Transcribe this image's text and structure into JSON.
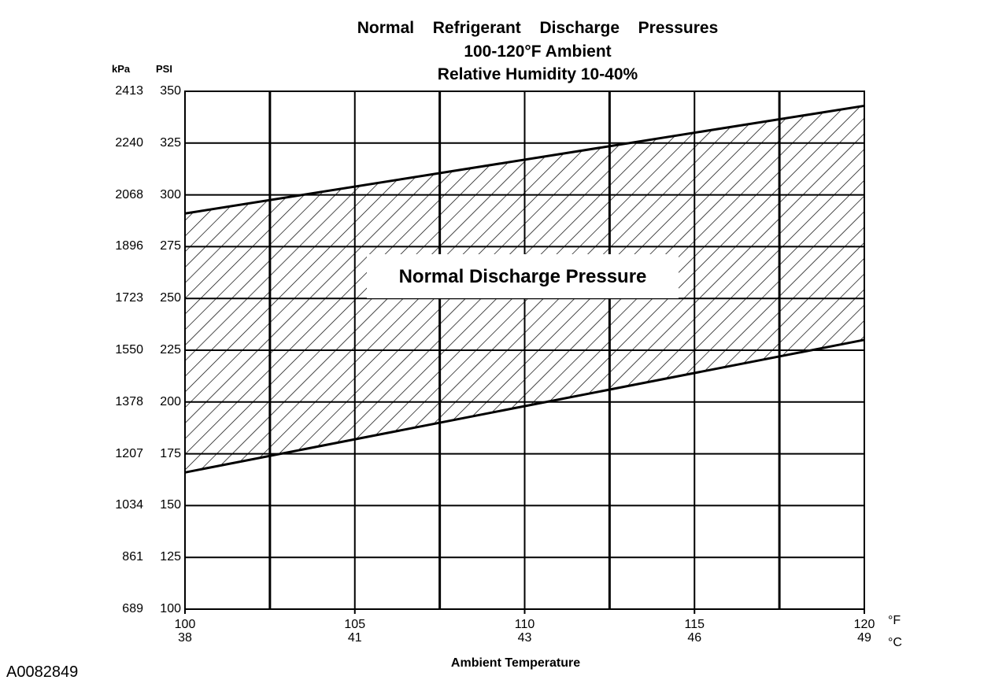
{
  "figure_id": "A0082849",
  "chart_data": {
    "type": "area",
    "title_lines": [
      "Normal  Refrigerant  Discharge  Pressures",
      "100-120°F Ambient",
      "Relative Humidity 10-40%"
    ],
    "xlabel": "Ambient Temperature",
    "x_unit_primary": "°F",
    "x_unit_secondary": "°C",
    "y_unit_primary": "PSI",
    "y_unit_secondary": "kPa",
    "xlim": [
      100,
      120
    ],
    "ylim": [
      100,
      350
    ],
    "x_ticks": [
      {
        "f": "100",
        "c": "38",
        "value": 100
      },
      {
        "f": "105",
        "c": "41",
        "value": 105
      },
      {
        "f": "110",
        "c": "43",
        "value": 110
      },
      {
        "f": "115",
        "c": "46",
        "value": 115
      },
      {
        "f": "120",
        "c": "49",
        "value": 120
      }
    ],
    "y_ticks": [
      {
        "psi": "350",
        "kpa": "2413",
        "value": 350
      },
      {
        "psi": "325",
        "kpa": "2240",
        "value": 325
      },
      {
        "psi": "300",
        "kpa": "2068",
        "value": 300
      },
      {
        "psi": "275",
        "kpa": "1896",
        "value": 275
      },
      {
        "psi": "250",
        "kpa": "1723",
        "value": 250
      },
      {
        "psi": "225",
        "kpa": "1550",
        "value": 225
      },
      {
        "psi": "200",
        "kpa": "1378",
        "value": 200
      },
      {
        "psi": "175",
        "kpa": "1207",
        "value": 175
      },
      {
        "psi": "150",
        "kpa": "1034",
        "value": 150
      },
      {
        "psi": "125",
        "kpa": "861",
        "value": 125
      },
      {
        "psi": "100",
        "kpa": "689",
        "value": 100
      }
    ],
    "x_gridlines": [
      100,
      102.5,
      105,
      107.5,
      110,
      112.5,
      115,
      117.5,
      120
    ],
    "grid": true,
    "series": [
      {
        "name": "upper",
        "x": [
          100,
          120
        ],
        "y": [
          291,
          343
        ]
      },
      {
        "name": "lower",
        "x": [
          100,
          120
        ],
        "y": [
          166,
          230
        ]
      }
    ],
    "band_fill": "hatched",
    "annotation": "Normal Discharge Pressure"
  }
}
